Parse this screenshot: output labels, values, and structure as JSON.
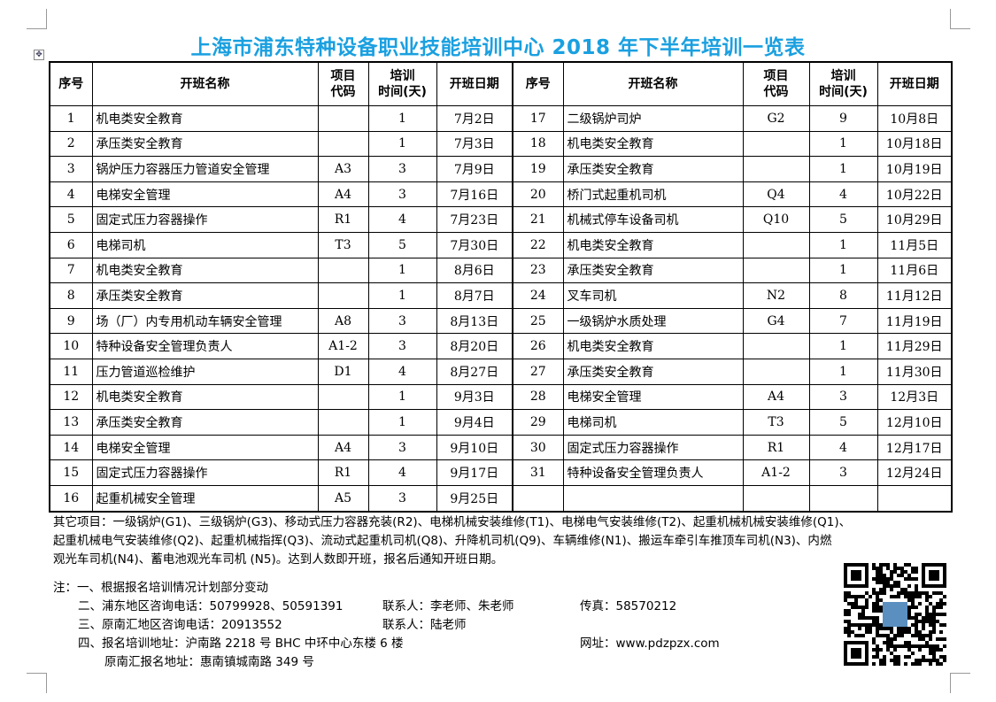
{
  "title": "上海市浦东特种设备职业技能培训中心 2018 年下半年培训一览表",
  "headers": [
    "序号",
    "开班名称",
    "项目代码",
    "培训时间(天)",
    "开班日期"
  ],
  "header_lines": {
    "code": [
      "项目",
      "代码"
    ],
    "days": [
      "培训",
      "时间(天)"
    ]
  },
  "left_rows": [
    [
      "1",
      "机电类安全教育",
      "",
      "1",
      "7月2日"
    ],
    [
      "2",
      "承压类安全教育",
      "",
      "1",
      "7月3日"
    ],
    [
      "3",
      "锅炉压力容器压力管道安全管理",
      "A3",
      "3",
      "7月9日"
    ],
    [
      "4",
      "电梯安全管理",
      "A4",
      "3",
      "7月16日"
    ],
    [
      "5",
      "固定式压力容器操作",
      "R1",
      "4",
      "7月23日"
    ],
    [
      "6",
      "电梯司机",
      "T3",
      "5",
      "7月30日"
    ],
    [
      "7",
      "机电类安全教育",
      "",
      "1",
      "8月6日"
    ],
    [
      "8",
      "承压类安全教育",
      "",
      "1",
      "8月7日"
    ],
    [
      "9",
      "场（厂）内专用机动车辆安全管理",
      "A8",
      "3",
      "8月13日"
    ],
    [
      "10",
      "特种设备安全管理负责人",
      "A1-2",
      "3",
      "8月20日"
    ],
    [
      "11",
      "压力管道巡检维护",
      "D1",
      "4",
      "8月27日"
    ],
    [
      "12",
      "机电类安全教育",
      "",
      "1",
      "9月3日"
    ],
    [
      "13",
      "承压类安全教育",
      "",
      "1",
      "9月4日"
    ],
    [
      "14",
      "电梯安全管理",
      "A4",
      "3",
      "9月10日"
    ],
    [
      "15",
      "固定式压力容器操作",
      "R1",
      "4",
      "9月17日"
    ],
    [
      "16",
      "起重机械安全管理",
      "A5",
      "3",
      "9月25日"
    ]
  ],
  "right_rows": [
    [
      "17",
      "二级锅炉司炉",
      "G2",
      "9",
      "10月8日"
    ],
    [
      "18",
      "机电类安全教育",
      "",
      "1",
      "10月18日"
    ],
    [
      "19",
      "承压类安全教育",
      "",
      "1",
      "10月19日"
    ],
    [
      "20",
      "桥门式起重机司机",
      "Q4",
      "4",
      "10月22日"
    ],
    [
      "21",
      "机械式停车设备司机",
      "Q10",
      "5",
      "10月29日"
    ],
    [
      "22",
      "机电类安全教育",
      "",
      "1",
      "11月5日"
    ],
    [
      "23",
      "承压类安全教育",
      "",
      "1",
      "11月6日"
    ],
    [
      "24",
      "叉车司机",
      "N2",
      "8",
      "11月12日"
    ],
    [
      "25",
      "一级锅炉水质处理",
      "G4",
      "7",
      "11月19日"
    ],
    [
      "26",
      "机电类安全教育",
      "",
      "1",
      "11月29日"
    ],
    [
      "27",
      "承压类安全教育",
      "",
      "1",
      "11月30日"
    ],
    [
      "28",
      "电梯安全管理",
      "A4",
      "3",
      "12月3日"
    ],
    [
      "29",
      "电梯司机",
      "T3",
      "5",
      "12月10日"
    ],
    [
      "30",
      "固定式压力容器操作",
      "R1",
      "4",
      "12月17日"
    ],
    [
      "31",
      "特种设备安全管理负责人",
      "A1-2",
      "3",
      "12月24日"
    ],
    [
      "",
      "",
      "",
      "",
      ""
    ]
  ],
  "other_items": [
    "其它项目：一级锅炉(G1)、三级锅炉(G3)、移动式压力容器充装(R2)、电梯机械安装维修(T1)、电梯电气安装维修(T2)、起重机械机械安装维修(Q1)、",
    "起重机械电气安装维修(Q2)、起重机械指挥(Q3)、流动式起重机司机(Q8)、升降机司机(Q9)、车辆维修(N1)、搬运车牵引车推顶车司机(N3)、内燃",
    "观光车司机(N4)、蓄电池观光车司机 (N5)。达到人数即开班，报名后通知开班日期。"
  ],
  "notes": {
    "n1": "注：一、根据报名培训情况计划部分变动",
    "n2": "二、浦东地区咨询电话：50799928、50591391",
    "n2_contact": "联系人：李老师、朱老师",
    "n2_fax": "传真：58570212",
    "n3": "三、原南汇地区咨询电话：20913552",
    "n3_contact": "联系人：陆老师",
    "n4": "四、报名培训地址：沪南路 2218 号 BHC 中环中心东楼 6 楼",
    "n4_web": "网址：www.pdzpzx.com",
    "n5": "原南汇报名地址：惠南镇城南路 349 号"
  },
  "colors": {
    "title": "#1aa0e0"
  }
}
